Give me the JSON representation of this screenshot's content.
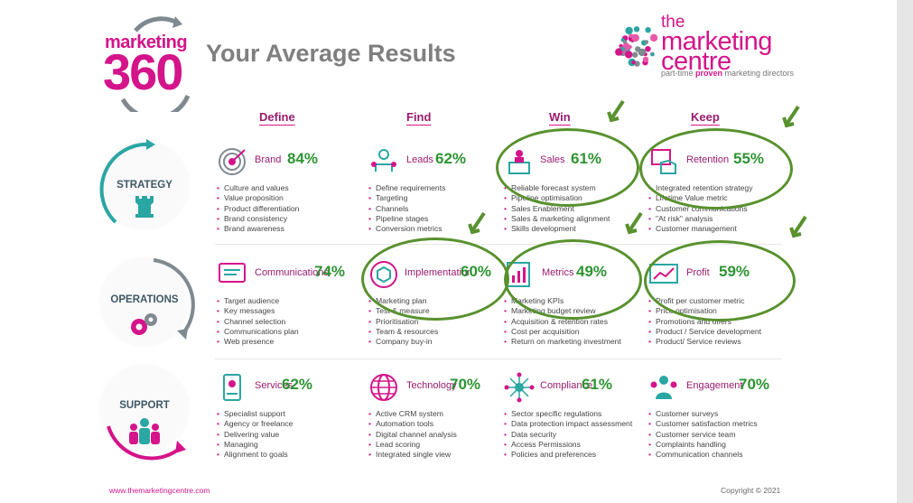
{
  "title": "Your Average Results",
  "logo_left": {
    "line1": "marketing",
    "line2": "360"
  },
  "logo_right": {
    "the": "the",
    "marketing": "marketing",
    "centre": "centre",
    "tag_pre": "part-time ",
    "tag_bold": "proven",
    "tag_post": " marketing directors"
  },
  "columns": [
    "Define",
    "Find",
    "Win",
    "Keep"
  ],
  "rows": [
    {
      "label": "STRATEGY",
      "cells": [
        {
          "name": "Brand",
          "pct": "84%",
          "bullets": [
            "Culture and values",
            "Value proposition",
            "Product differentiation",
            "Brand consistency",
            "Brand awareness"
          ]
        },
        {
          "name": "Leads",
          "pct": "62%",
          "bullets": [
            "Define requirements",
            "Targeting",
            "Channels",
            "Pipeline stages",
            "Conversion metrics"
          ]
        },
        {
          "name": "Sales",
          "pct": "61%",
          "bullets": [
            "Reliable forecast system",
            "Pipeline optimisation",
            "Sales Enablement",
            "Sales & marketing alignment",
            "Skills development"
          ]
        },
        {
          "name": "Retention",
          "pct": "55%",
          "bullets": [
            "Integrated retention strategy",
            "Lifetime Value metric",
            "Customer communications",
            "\"At risk\" analysis",
            "Customer management"
          ]
        }
      ]
    },
    {
      "label": "OPERATIONS",
      "cells": [
        {
          "name": "Communications",
          "pct": "74%",
          "bullets": [
            "Target audience",
            "Key messages",
            "Channel selection",
            "Communications plan",
            "Web presence"
          ]
        },
        {
          "name": "Implementation",
          "pct": "60%",
          "bullets": [
            "Marketing plan",
            "Test & measure",
            "Prioritisation",
            "Team & resources",
            "Company buy-in"
          ]
        },
        {
          "name": "Metrics",
          "pct": "49%",
          "bullets": [
            "Marketing KPIs",
            "Marketing budget review",
            "Acquisition & retention rates",
            "Cost per acquisition",
            "Return on marketing investment"
          ]
        },
        {
          "name": "Profit",
          "pct": "59%",
          "bullets": [
            "Profit per customer metric",
            "Price optimisation",
            "Promotions and offers",
            "Product / Service development",
            "Product/ Service reviews"
          ]
        }
      ]
    },
    {
      "label": "SUPPORT",
      "cells": [
        {
          "name": "Services",
          "pct": "62%",
          "bullets": [
            "Specialist support",
            "Agency or freelance",
            "Delivering value",
            "Managing",
            "Alignment to goals"
          ]
        },
        {
          "name": "Technology",
          "pct": "70%",
          "bullets": [
            "Active CRM system",
            "Automation tools",
            "Digital channel analysis",
            "Lead scoring",
            "Integrated single view"
          ]
        },
        {
          "name": "Compliance",
          "pct": "61%",
          "bullets": [
            "Sector specific regulations",
            "Data protection impact assessment",
            "Data security",
            "Access Permissions",
            "Policies and preferences"
          ]
        },
        {
          "name": "Engagement",
          "pct": "70%",
          "bullets": [
            "Customer surveys",
            "Customer satisfaction metrics",
            "Customer service team",
            "Complaints handling",
            "Communication channels"
          ]
        }
      ]
    }
  ],
  "footer": {
    "url": "www.themarketingcentre.com",
    "copyright": "Copyright © 2021"
  },
  "colors": {
    "magenta": "#d4148a",
    "green": "#2d9432",
    "ring_green": "#58912e",
    "teal": "#2aa6a3"
  },
  "icons": [
    "target-icon",
    "leads-icon",
    "sales-icon",
    "retention-icon",
    "communications-icon",
    "implementation-icon",
    "metrics-icon",
    "profit-icon",
    "services-icon",
    "technology-icon",
    "compliance-icon",
    "engagement-icon"
  ]
}
